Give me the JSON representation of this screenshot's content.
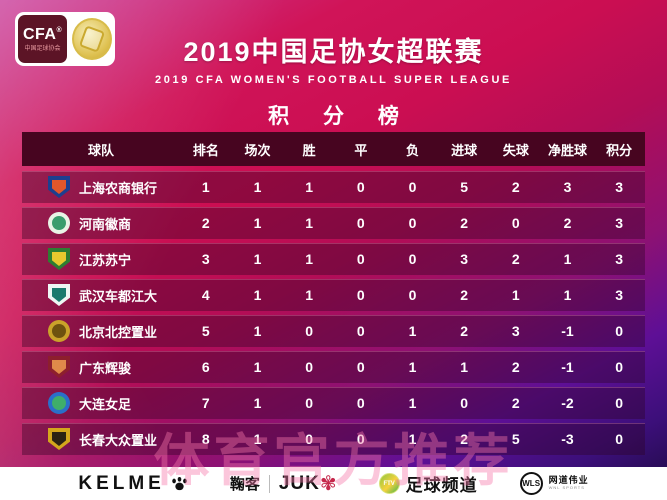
{
  "header": {
    "logo": {
      "word": "CFA",
      "reg": "®",
      "sub": "中国足球协会"
    },
    "title": "2019中国足协女超联赛",
    "subtitle": "2019 CFA WOMEN'S FOOTBALL SUPER LEAGUE",
    "section_title": "积 分 榜"
  },
  "chart_data": {
    "type": "table",
    "title": "2019中国足协女超联赛 积分榜",
    "columns": [
      "球队",
      "排名",
      "场次",
      "胜",
      "平",
      "负",
      "进球",
      "失球",
      "净胜球",
      "积分"
    ],
    "rows": [
      {
        "team": "上海农商银行",
        "rank": "1",
        "played": "1",
        "win": "1",
        "draw": "0",
        "loss": "0",
        "gf": "5",
        "ga": "2",
        "gd": "3",
        "pts": "3",
        "logo": {
          "shape": "shield",
          "outer": "#1d3f8f",
          "inner": "#e2572b"
        }
      },
      {
        "team": "河南徽商",
        "rank": "2",
        "played": "1",
        "win": "1",
        "draw": "0",
        "loss": "0",
        "gf": "2",
        "ga": "0",
        "gd": "2",
        "pts": "3",
        "logo": {
          "shape": "circle",
          "outer": "#e9f3e6",
          "inner": "#3a9c6d"
        }
      },
      {
        "team": "江苏苏宁",
        "rank": "3",
        "played": "1",
        "win": "1",
        "draw": "0",
        "loss": "0",
        "gf": "3",
        "ga": "2",
        "gd": "1",
        "pts": "3",
        "logo": {
          "shape": "shield",
          "outer": "#2e7d32",
          "inner": "#e8c92e"
        }
      },
      {
        "team": "武汉车都江大",
        "rank": "4",
        "played": "1",
        "win": "1",
        "draw": "0",
        "loss": "0",
        "gf": "2",
        "ga": "1",
        "gd": "1",
        "pts": "3",
        "logo": {
          "shape": "shield",
          "outer": "#eef6f4",
          "inner": "#1a7a6e"
        }
      },
      {
        "team": "北京北控置业",
        "rank": "5",
        "played": "1",
        "win": "0",
        "draw": "0",
        "loss": "1",
        "gf": "2",
        "ga": "3",
        "gd": "-1",
        "pts": "0",
        "logo": {
          "shape": "circle",
          "outer": "#caa22a",
          "inner": "#6e520f"
        }
      },
      {
        "team": "广东辉骏",
        "rank": "6",
        "played": "1",
        "win": "0",
        "draw": "0",
        "loss": "1",
        "gf": "1",
        "ga": "2",
        "gd": "-1",
        "pts": "0",
        "logo": {
          "shape": "shield",
          "outer": "#8d1f2d",
          "inner": "#e08a4a"
        }
      },
      {
        "team": "大连女足",
        "rank": "7",
        "played": "1",
        "win": "0",
        "draw": "0",
        "loss": "1",
        "gf": "0",
        "ga": "2",
        "gd": "-2",
        "pts": "0",
        "logo": {
          "shape": "circle",
          "outer": "#2a6fc9",
          "inner": "#3fae6a"
        }
      },
      {
        "team": "长春大众置业",
        "rank": "8",
        "played": "1",
        "win": "0",
        "draw": "0",
        "loss": "1",
        "gf": "2",
        "ga": "5",
        "gd": "-3",
        "pts": "0",
        "logo": {
          "shape": "shield",
          "outer": "#d4a71c",
          "inner": "#2b2313"
        }
      }
    ]
  },
  "watermark": "体育官方推荐",
  "footer": {
    "sponsors": [
      {
        "name": "KELME",
        "icon": "paw"
      },
      {
        "name": "鞠客",
        "latin": "JUK",
        "icon": "pinwheel"
      },
      {
        "name": "足球频道",
        "badge": "FTV"
      },
      {
        "name": "网道伟业",
        "badge": "WLS",
        "sub": "WNL SPORTS"
      }
    ]
  },
  "colors": {
    "accent_crimson": "#cb0e52",
    "accent_purple": "#5e0f96",
    "table_header_bg": "#470520",
    "watermark_pink": "#f678aa"
  }
}
